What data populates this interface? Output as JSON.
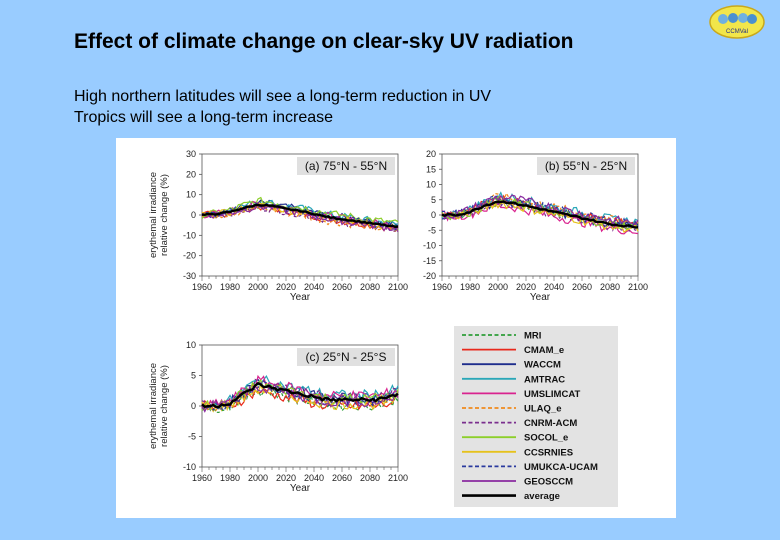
{
  "slide": {
    "title": "Effect of climate change on clear-sky UV radiation",
    "subtitle_lines": [
      "High northern latitudes will see a long-term reduction in UV",
      "Tropics will see a long-term increase"
    ],
    "logo_text": "CCMVal"
  },
  "chart_data": {
    "type": "line",
    "ylabel": [
      "erythemal irradiance",
      "relative change (%)"
    ],
    "xlabel": "Year",
    "xlim": [
      1960,
      2100
    ],
    "xticks": [
      1960,
      1980,
      2000,
      2020,
      2040,
      2060,
      2080,
      2100
    ],
    "panels": [
      {
        "label": "(a) 75°N - 55°N",
        "ylim": [
          -30,
          30
        ],
        "yticks": [
          30,
          20,
          10,
          0,
          -10,
          -20,
          -30
        ],
        "average": {
          "x": [
            1960,
            1970,
            1980,
            1990,
            2000,
            2010,
            2020,
            2030,
            2040,
            2050,
            2060,
            2070,
            2080,
            2090,
            2100
          ],
          "y": [
            0,
            0.5,
            1.5,
            3.5,
            5,
            4.5,
            3,
            2,
            0.5,
            -1,
            -2,
            -3,
            -4,
            -5,
            -6
          ]
        },
        "model_spread": 3
      },
      {
        "label": "(b) 55°N - 25°N",
        "ylim": [
          -20,
          20
        ],
        "yticks": [
          20,
          15,
          10,
          5,
          0,
          -5,
          -10,
          -15,
          -20
        ],
        "average": {
          "x": [
            1960,
            1970,
            1980,
            1990,
            2000,
            2010,
            2020,
            2030,
            2040,
            2050,
            2060,
            2070,
            2080,
            2090,
            2100
          ],
          "y": [
            0,
            0,
            1,
            3,
            4.5,
            4,
            3,
            2,
            1,
            0,
            -1,
            -2,
            -3,
            -3.5,
            -4
          ]
        },
        "model_spread": 2.5
      },
      {
        "label": "(c) 25°N - 25°S",
        "ylim": [
          -10,
          10
        ],
        "yticks": [
          10,
          5,
          0,
          -5,
          -10
        ],
        "average": {
          "x": [
            1960,
            1970,
            1980,
            1990,
            2000,
            2010,
            2020,
            2030,
            2040,
            2050,
            2060,
            2070,
            2080,
            2090,
            2100
          ],
          "y": [
            0,
            0,
            0.5,
            2,
            3.5,
            3,
            2.5,
            2,
            1.5,
            1,
            1,
            1,
            1,
            1.2,
            2
          ]
        },
        "model_spread": 1.5
      }
    ],
    "legend": [
      {
        "name": "MRI",
        "color": "#2e9e3a",
        "dash": "dashed"
      },
      {
        "name": "CMAM_e",
        "color": "#e8291c",
        "dash": "solid"
      },
      {
        "name": "WACCM",
        "color": "#1e2d8c",
        "dash": "solid"
      },
      {
        "name": "AMTRAC",
        "color": "#2aa7b8",
        "dash": "solid"
      },
      {
        "name": "UMSLIMCAT",
        "color": "#d9238f",
        "dash": "solid"
      },
      {
        "name": "ULAQ_e",
        "color": "#f08a1e",
        "dash": "dashed"
      },
      {
        "name": "CNRM-ACM",
        "color": "#7a2e8e",
        "dash": "dashed"
      },
      {
        "name": "SOCOL_e",
        "color": "#8ccf2a",
        "dash": "solid"
      },
      {
        "name": "CCSRNIES",
        "color": "#e6c21c",
        "dash": "solid"
      },
      {
        "name": "UMUKCA-UCAM",
        "color": "#2a3a9e",
        "dash": "dashed"
      },
      {
        "name": "GEOSCCM",
        "color": "#8a2aa0",
        "dash": "solid"
      },
      {
        "name": "average",
        "color": "#000000",
        "dash": "solid"
      }
    ]
  }
}
